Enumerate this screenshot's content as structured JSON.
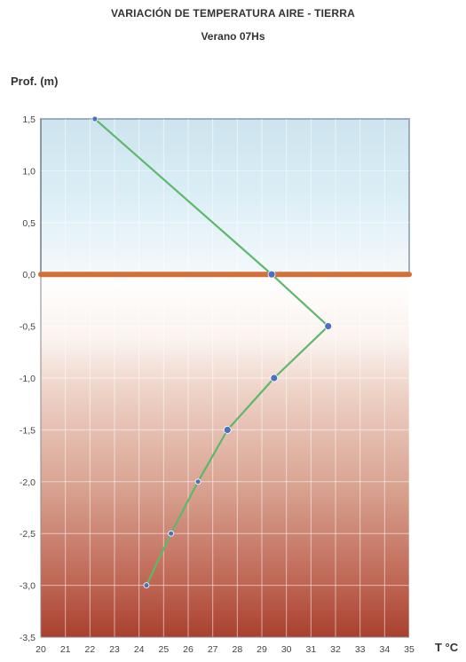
{
  "title": "VARIACIÓN DE TEMPERATURA  AIRE -  TIERRA",
  "subtitle": "Verano      07Hs",
  "chart_data": {
    "type": "line",
    "title": "VARIACIÓN DE TEMPERATURA  AIRE -  TIERRA",
    "subtitle": "Verano      07Hs",
    "xlabel": "T °C",
    "ylabel": "Prof. (m)",
    "xlim": [
      20,
      35
    ],
    "ylim": [
      -3.5,
      1.5
    ],
    "x_ticks": [
      "20",
      "21",
      "22",
      "23",
      "24",
      "25",
      "26",
      "27",
      "28",
      "29",
      "30",
      "31",
      "32",
      "33",
      "34",
      "35"
    ],
    "y_ticks": [
      "1,5",
      "1,0",
      "0,5",
      "0,0",
      "-0,5",
      "-1,0",
      "-1,5",
      "-2,0",
      "-2,5",
      "-3,0",
      "-3,5"
    ],
    "grid": true,
    "series": [
      {
        "color": "#5cb86a",
        "marker_color": "#4a6fc4",
        "points": [
          {
            "x": 22.2,
            "y": 1.5
          },
          {
            "x": 29.4,
            "y": 0.0
          },
          {
            "x": 31.7,
            "y": -0.5
          },
          {
            "x": 29.5,
            "y": -1.0
          },
          {
            "x": 27.6,
            "y": -1.5
          },
          {
            "x": 26.4,
            "y": -2.0
          },
          {
            "x": 25.3,
            "y": -2.5
          },
          {
            "x": 24.3,
            "y": -3.0
          }
        ]
      }
    ],
    "ground_line": {
      "y": 0.0,
      "color": "#d2703a"
    },
    "air_color": "#cfe6f1",
    "soil_color": "#b0483a"
  }
}
